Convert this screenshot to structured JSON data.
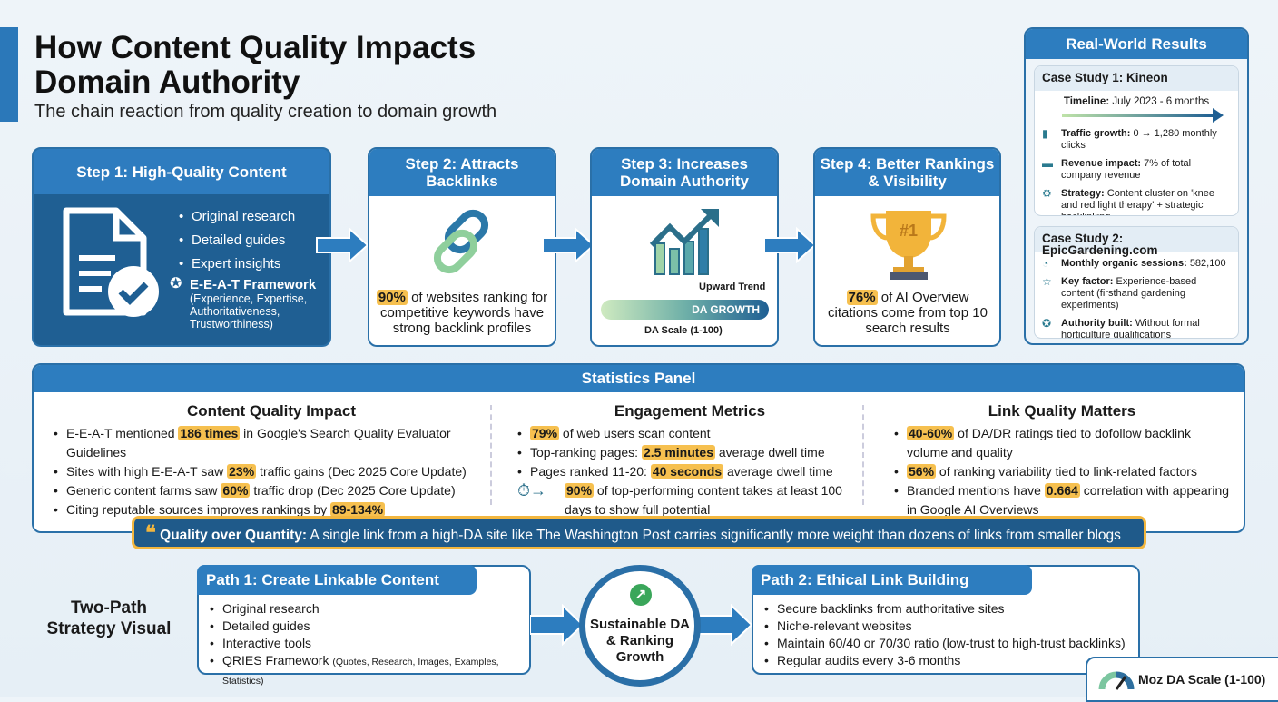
{
  "header": {
    "title_line1": "How Content Quality Impacts",
    "title_line2": "Domain Authority",
    "subtitle": "The chain reaction from quality creation to domain growth"
  },
  "steps": [
    {
      "title": "Step 1: High-Quality Content",
      "icon": "document-check-icon",
      "items": [
        "Original research",
        "Detailed guides",
        "Expert insights"
      ],
      "framework_title": "E-E-A-T Framework",
      "framework_detail": "(Experience, Expertise, Authoritativeness, Trustworthiness)"
    },
    {
      "title": "Step 2: Attracts Backlinks",
      "icon": "chain-link-icon",
      "highlight": "90%",
      "text": "of websites ranking for competitive keywords have strong backlink profiles"
    },
    {
      "title": "Step 3: Increases Domain Authority",
      "icon": "growth-chart-icon",
      "trend_label": "Upward Trend",
      "bar_label": "DA GROWTH",
      "scale_label": "DA Scale (1-100)"
    },
    {
      "title": "Step 4: Better Rankings & Visibility",
      "icon": "trophy-icon",
      "trophy_text": "#1",
      "highlight": "76%",
      "text": "of AI Overview citations come from top 10 search results"
    }
  ],
  "results": {
    "title": "Real-World Results",
    "case1": {
      "title": "Case Study 1: Kineon",
      "timeline_label": "Timeline:",
      "timeline": "July 2023 - 6 months",
      "rows": [
        {
          "icon": "bar-chart-icon",
          "label": "Traffic growth:",
          "text": "0 → 1,280 monthly clicks"
        },
        {
          "icon": "money-icon",
          "label": "Revenue impact:",
          "text": "7% of total company revenue"
        },
        {
          "icon": "gear-icon",
          "label": "Strategy:",
          "text": "Content cluster on 'knee and red light therapy' + strategic backlinking"
        }
      ]
    },
    "case2": {
      "title": "Case Study 2: EpicGardening.com",
      "rows": [
        {
          "icon": "speedometer-icon",
          "label": "Monthly organic sessions:",
          "text": "582,100"
        },
        {
          "icon": "star-icon",
          "label": "Key factor:",
          "text": "Experience-based content (firsthand gardening experiments)"
        },
        {
          "icon": "award-icon",
          "label": "Authority built:",
          "text": "Without formal horticulture qualifications"
        }
      ]
    }
  },
  "stats": {
    "title": "Statistics Panel",
    "columns": [
      {
        "title": "Content Quality Impact",
        "items": [
          [
            "E-E-A-T mentioned ",
            "186 times",
            " in Google's Search Quality Evaluator Guidelines"
          ],
          [
            "Sites with high E-E-A-T saw ",
            "23%",
            " traffic gains (Dec 2025 Core Update)"
          ],
          [
            "Generic content farms saw ",
            "60%",
            " traffic drop (Dec 2025 Core Update)"
          ],
          [
            "Citing reputable sources improves rankings by ",
            "89-134%",
            ""
          ]
        ]
      },
      {
        "title": "Engagement Metrics",
        "items": [
          [
            "",
            "79%",
            " of web users scan content"
          ],
          [
            "Top-ranking pages: ",
            "2.5 minutes",
            " average dwell time"
          ],
          [
            "Pages ranked 11-20: ",
            "40 seconds",
            " average dwell time"
          ],
          [
            "",
            "90%",
            " of top-performing content takes at least 100 days to show full potential"
          ]
        ]
      },
      {
        "title": "Link Quality Matters",
        "items": [
          [
            "",
            "40-60%",
            " of DA/DR ratings tied to dofollow backlink volume and quality"
          ],
          [
            "",
            "56%",
            " of ranking variability tied to link-related factors"
          ],
          [
            "Branded mentions have ",
            "0.664",
            " correlation with appearing in Google AI Overviews"
          ]
        ]
      }
    ]
  },
  "quote": {
    "label": "Quality over Quantity:",
    "text": " A single link from a high-DA site like The Washington Post carries significantly more weight than dozens of links from smaller blogs"
  },
  "strategy": {
    "label": "Two-Path Strategy Visual",
    "path1": {
      "title": "Path 1: Create Linkable Content",
      "items": [
        "Original research",
        "Detailed guides",
        "Interactive tools",
        "QRIES Framework"
      ],
      "qries_detail": "(Quotes, Research, Images, Examples, Statistics)"
    },
    "center": "Sustainable DA & Ranking Growth",
    "path2": {
      "title": "Path 2: Ethical Link Building",
      "items": [
        "Secure backlinks from authoritative sites",
        "Niche-relevant websites",
        "Maintain 60/40 or 70/30 ratio (low-trust to high-trust backlinks)",
        "Regular audits every 3-6 months"
      ]
    },
    "moz": "Moz DA Scale (1-100)"
  },
  "colors": {
    "primary": "#2d7dbf",
    "dark": "#1f5f93",
    "highlight": "#f6c04f"
  }
}
